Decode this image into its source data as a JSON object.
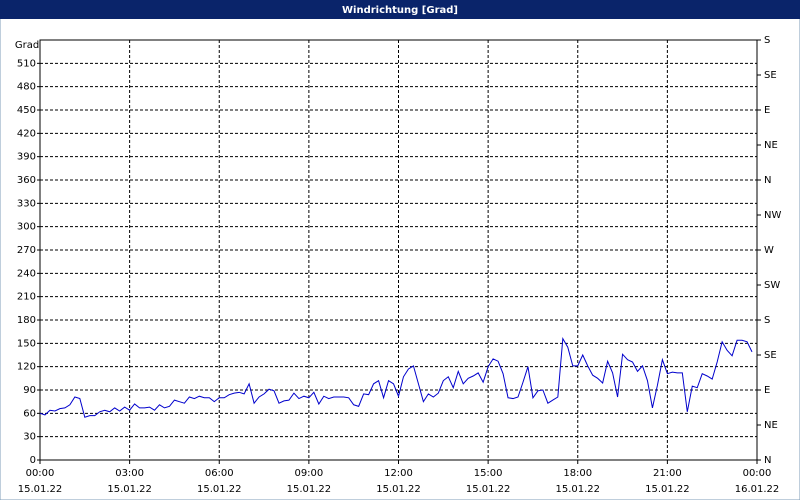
{
  "chart_data": {
    "type": "line",
    "title": "Windrichtung [Grad]",
    "ylabel": "Grad",
    "x": [
      0,
      10,
      20,
      30,
      40,
      50,
      60,
      70,
      80,
      90,
      100,
      110,
      120,
      130,
      140,
      150,
      160,
      170,
      180,
      190,
      200,
      210,
      220,
      230,
      240,
      250,
      260,
      270,
      280,
      290,
      300,
      310,
      320,
      330,
      340,
      350,
      360,
      370,
      380,
      390,
      400,
      410,
      420,
      430,
      440,
      450,
      460,
      470,
      480,
      490,
      500,
      510,
      520,
      530,
      540,
      550,
      560,
      570,
      580,
      590,
      600,
      610,
      620,
      630,
      640,
      650,
      660,
      670,
      680,
      690,
      700,
      710,
      720,
      730,
      740,
      750,
      760,
      770,
      780,
      790,
      800,
      810,
      820,
      830,
      840,
      850,
      860,
      870,
      880,
      890,
      900,
      910,
      920,
      930,
      940,
      950,
      960,
      970,
      980,
      990,
      1000,
      1010,
      1020,
      1030,
      1040,
      1050,
      1060,
      1070,
      1080,
      1090,
      1100,
      1110,
      1120,
      1130,
      1140,
      1150,
      1160,
      1170,
      1180,
      1190,
      1200,
      1210,
      1220,
      1230,
      1240,
      1250,
      1260,
      1270,
      1280,
      1290,
      1300,
      1310,
      1320,
      1330,
      1340,
      1350,
      1360,
      1370,
      1380,
      1390,
      1400,
      1410,
      1420,
      1430
    ],
    "series": [
      {
        "color": "#0000cc",
        "values": [
          60,
          58,
          64,
          63,
          66,
          67,
          71,
          81,
          79,
          55,
          57,
          57,
          62,
          64,
          62,
          67,
          63,
          68,
          64,
          72,
          67,
          67,
          68,
          64,
          71,
          67,
          69,
          77,
          75,
          73,
          81,
          79,
          82,
          80,
          80,
          75,
          80,
          80,
          84,
          86,
          87,
          85,
          98,
          73,
          81,
          85,
          91,
          89,
          73,
          76,
          77,
          86,
          79,
          82,
          80,
          87,
          72,
          82,
          79,
          81,
          81,
          81,
          80,
          71,
          69,
          85,
          84,
          98,
          102,
          80,
          102,
          98,
          82,
          107,
          117,
          121,
          98,
          75,
          85,
          81,
          86,
          102,
          107,
          93,
          114,
          98,
          105,
          108,
          112,
          100,
          120,
          130,
          127,
          111,
          80,
          79,
          81,
          100,
          120,
          80,
          89,
          90,
          73,
          77,
          81,
          156,
          145,
          121,
          121,
          135,
          121,
          109,
          105,
          99,
          127,
          112,
          81,
          136,
          129,
          126,
          114,
          121,
          102,
          67,
          96,
          129,
          111,
          113,
          112,
          112,
          62,
          95,
          93,
          111,
          108,
          104,
          126,
          152,
          141,
          134,
          154,
          154,
          152,
          139
        ]
      }
    ],
    "xlim": [
      0,
      1440
    ],
    "xticks": [
      {
        "value": 0,
        "label": "00:00"
      },
      {
        "value": 180,
        "label": "03:00"
      },
      {
        "value": 360,
        "label": "06:00"
      },
      {
        "value": 540,
        "label": "09:00"
      },
      {
        "value": 720,
        "label": "12:00"
      },
      {
        "value": 900,
        "label": "15:00"
      },
      {
        "value": 1080,
        "label": "18:00"
      },
      {
        "value": 1260,
        "label": "21:00"
      },
      {
        "value": 1440,
        "label": "00:00"
      }
    ],
    "xtick_dates": [
      "15.01.22",
      "15.01.22",
      "15.01.22",
      "15.01.22",
      "15.01.22",
      "15.01.22",
      "15.01.22",
      "15.01.22",
      "16.01.22"
    ],
    "ylim": [
      0,
      540
    ],
    "yticks": [
      0,
      30,
      60,
      90,
      120,
      150,
      180,
      210,
      240,
      270,
      300,
      330,
      360,
      390,
      420,
      450,
      480,
      510
    ],
    "y2lim": [
      0,
      540
    ],
    "y2ticks": [
      {
        "value": 0,
        "label": "N"
      },
      {
        "value": 45,
        "label": "NE"
      },
      {
        "value": 90,
        "label": "E"
      },
      {
        "value": 135,
        "label": "SE"
      },
      {
        "value": 180,
        "label": "S"
      },
      {
        "value": 225,
        "label": "SW"
      },
      {
        "value": 270,
        "label": "W"
      },
      {
        "value": 315,
        "label": "NW"
      },
      {
        "value": 360,
        "label": "N"
      },
      {
        "value": 405,
        "label": "NE"
      },
      {
        "value": 450,
        "label": "E"
      },
      {
        "value": 495,
        "label": "SE"
      },
      {
        "value": 540,
        "label": "S"
      }
    ],
    "grid": true
  }
}
